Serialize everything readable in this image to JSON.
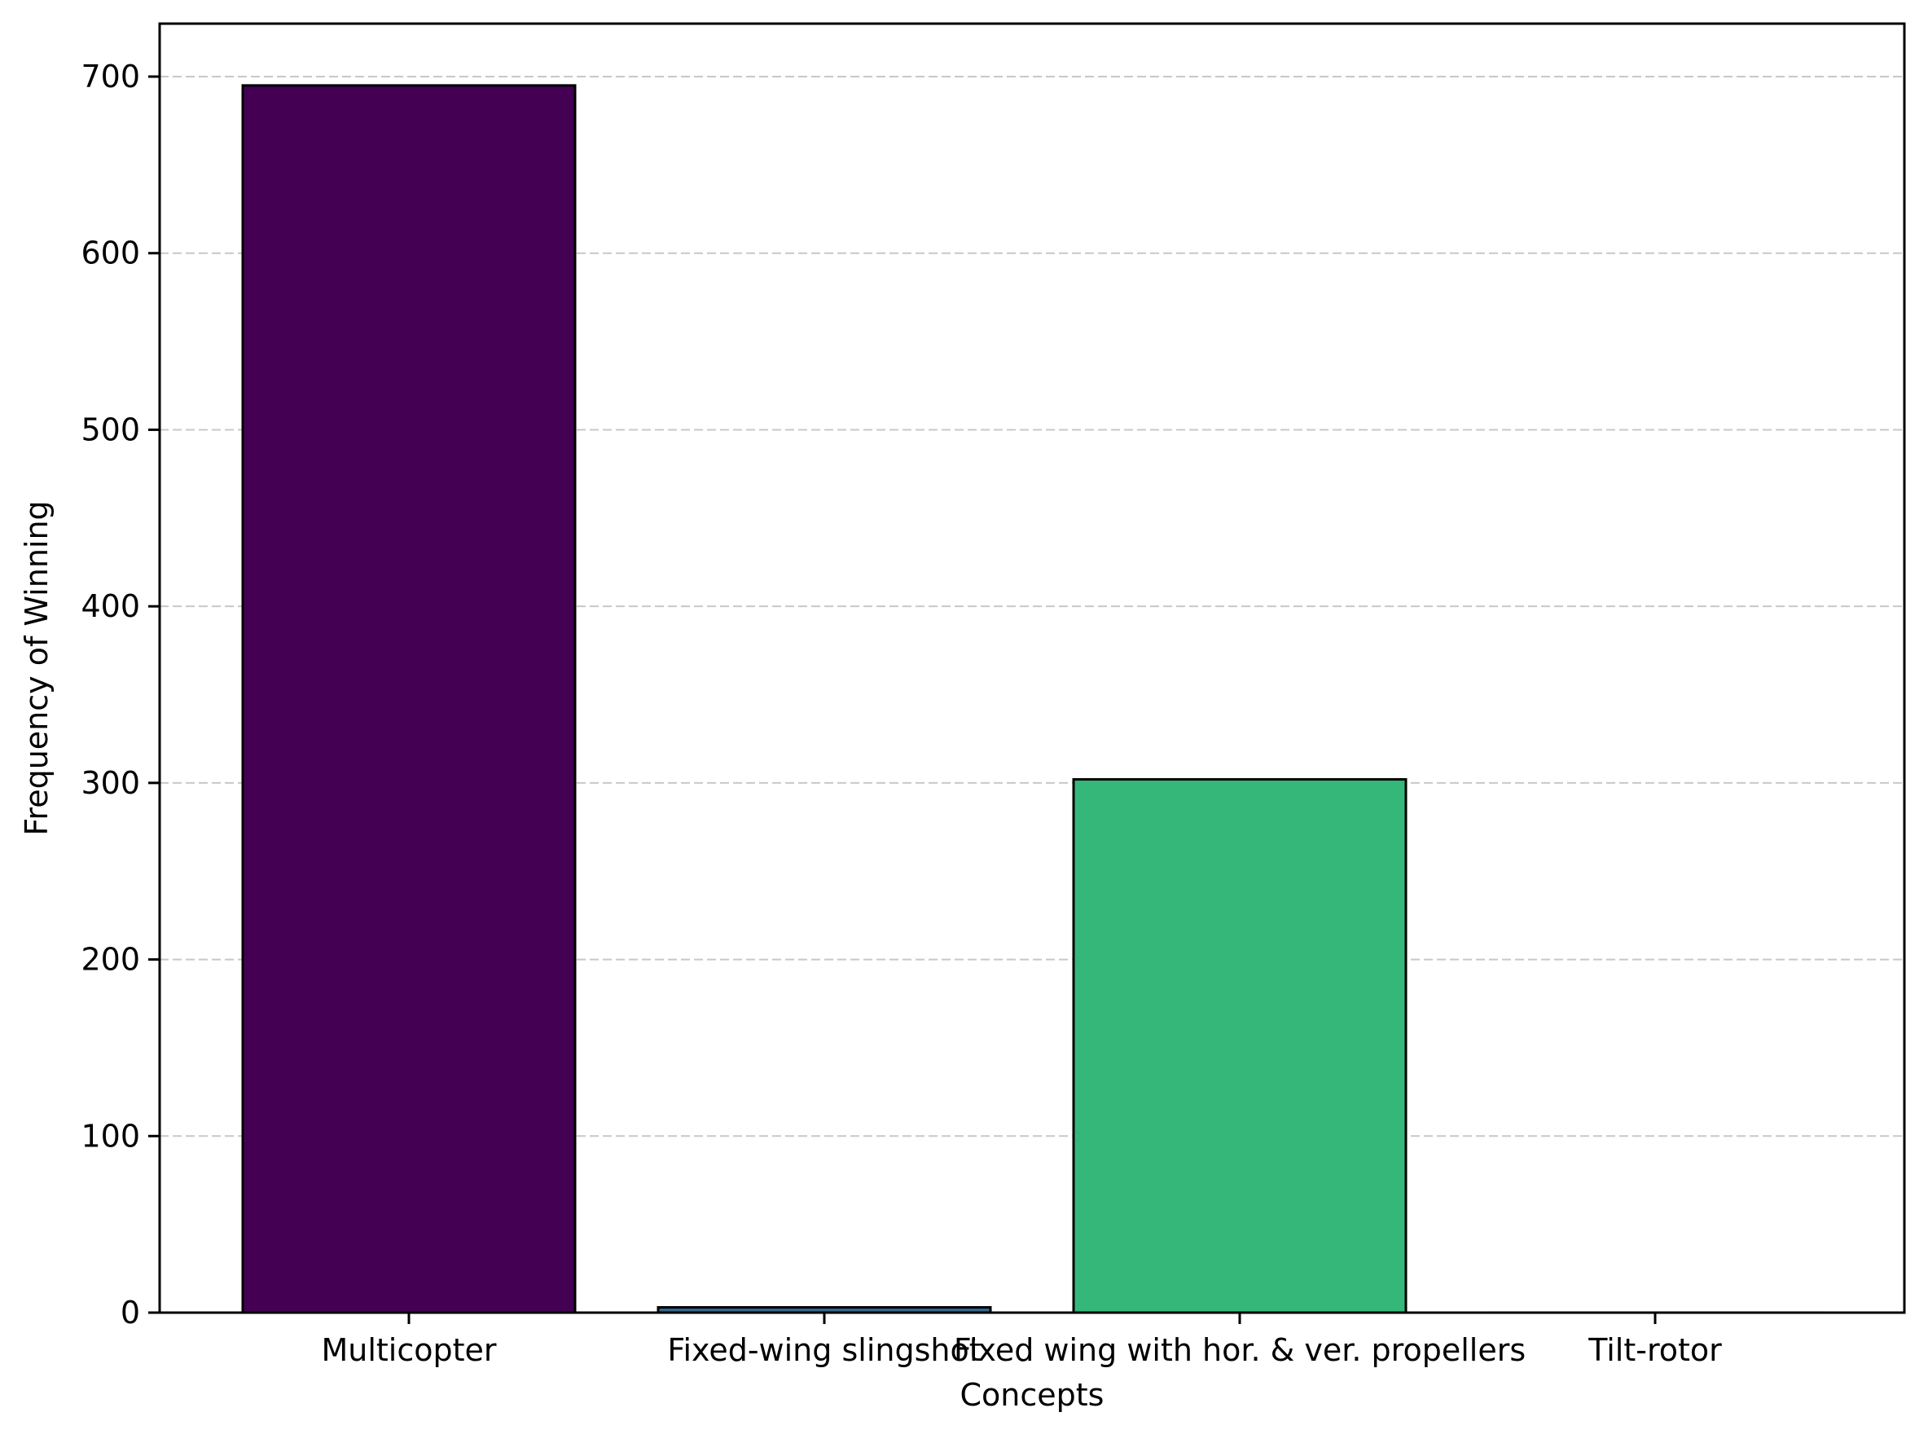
{
  "chart_data": {
    "type": "bar",
    "title": "",
    "xlabel": "Concepts",
    "ylabel": "Frequency of Winning",
    "categories": [
      "Multicopter",
      "Fixed-wing slingshot",
      "Fixed wing with hor. & ver. propellers",
      "Tilt-rotor"
    ],
    "values": [
      695,
      3,
      302,
      0
    ],
    "colors": [
      "#440154",
      "#31688e",
      "#35b779",
      "#fde725"
    ],
    "ylim": [
      0,
      730
    ],
    "yticks": [
      0,
      100,
      200,
      300,
      400,
      500,
      600,
      700
    ],
    "grid": "y-dashed",
    "legend": "none"
  }
}
